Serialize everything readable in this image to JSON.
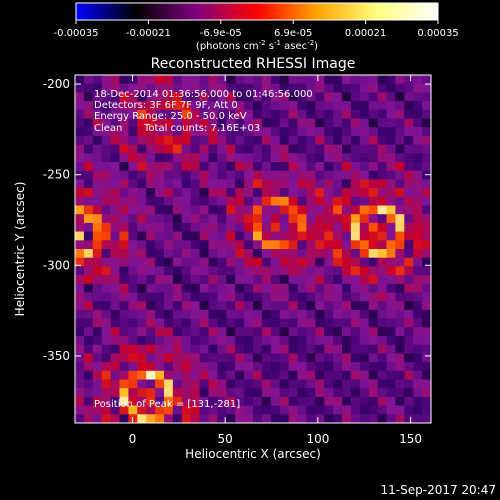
{
  "colorbar": {
    "ticks": [
      "-0.00035",
      "-0.00021",
      "-6.9e-05",
      "6.9e-05",
      "0.00021",
      "0.00035"
    ],
    "range": [
      -0.00035,
      0.00035
    ],
    "colors": [
      "#0000ff",
      "#000000",
      "#800080",
      "#ff0000",
      "#ffa500",
      "#ffff80",
      "#ffffff"
    ],
    "units_text": "(photons cm",
    "units_sup1": "-2",
    "units_mid": " s",
    "units_sup2": "-1",
    "units_mid2": " asec",
    "units_sup3": "-2",
    "units_end": ")"
  },
  "plot": {
    "title": "Reconstructed RHESSI Image",
    "xlabel": "Heliocentric X (arcsec)",
    "ylabel": "Heliocentric Y (arcsec)",
    "xticks": [
      "0",
      "50",
      "100",
      "150"
    ],
    "yticks": [
      "-200",
      "-250",
      "-300",
      "-350"
    ],
    "x_range": [
      -31,
      161
    ],
    "y_range": [
      -195,
      -387
    ]
  },
  "overlay": {
    "line1": "18-Dec-2014 01:36:56.000 to 01:46:56.000",
    "line2": "Detectors: 3F 6F 7F 9F, Att 0",
    "line3": "Energy Range: 25.0 - 50.0 keV",
    "line4_left": "Clean",
    "line4_right": "Total counts: 7.16E+03",
    "peak": "Position of Peak = [131,-281]"
  },
  "chart_data": {
    "type": "heatmap",
    "title": "Reconstructed RHESSI Image",
    "xlabel": "Heliocentric X (arcsec)",
    "ylabel": "Heliocentric Y (arcsec)",
    "xlim": [
      -31,
      161
    ],
    "ylim": [
      -387,
      -195
    ],
    "xticks": [
      0,
      50,
      100,
      150
    ],
    "yticks": [
      -200,
      -250,
      -300,
      -350
    ],
    "colorbar_range": [
      -0.00035,
      0.00035
    ],
    "colorbar_units": "photons cm^-2 s^-1 asec^-2",
    "sources": [
      {
        "x": -29,
        "y": -283,
        "value": 0.00032
      },
      {
        "x": 132,
        "y": -281,
        "value": 0.00035
      },
      {
        "x": 78,
        "y": -277,
        "value": 0.00026
      },
      {
        "x": 8,
        "y": -372,
        "value": 0.00034
      },
      {
        "x": 18,
        "y": -222,
        "value": 0.0002
      }
    ],
    "peak": [
      131,
      -281
    ]
  },
  "footer": {
    "timestamp": "11-Sep-2017 20:47"
  }
}
